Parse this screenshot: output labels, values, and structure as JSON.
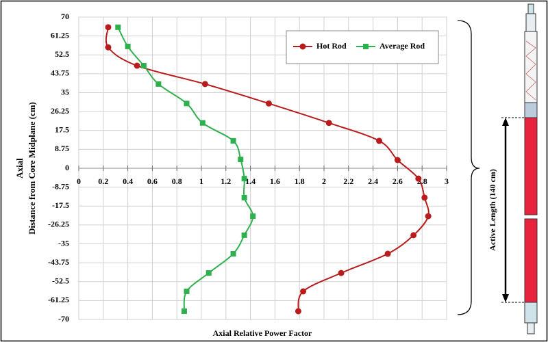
{
  "chart_data": {
    "type": "line",
    "xlabel": "Axial Relative Power Factor",
    "ylabel": [
      "Axial",
      "Distance from Core Midplane  (cm)"
    ],
    "annotation": "Active Length (140 cm)",
    "xlim": [
      0,
      3
    ],
    "xticks": [
      0,
      0.2,
      0.4,
      0.6,
      0.8,
      1,
      1.2,
      1.4,
      1.6,
      1.8,
      2,
      2.2,
      2.4,
      2.6,
      2.8,
      3
    ],
    "ylim": [
      -70,
      70
    ],
    "yticks": [
      70,
      61.25,
      52.5,
      43.75,
      35,
      26.25,
      17.5,
      8.75,
      0,
      -8.75,
      -17.5,
      -26.25,
      -35,
      -43.75,
      -52.5,
      -61.25,
      -70
    ],
    "grid": true,
    "legend": "top-right",
    "series": [
      {
        "name": "Hot Rod",
        "color": "#b81c1c",
        "marker": "circle",
        "x": [
          0.24,
          0.24,
          0.475,
          1.03,
          1.55,
          2.04,
          2.45,
          2.6,
          2.77,
          2.82,
          2.85,
          2.73,
          2.52,
          2.14,
          1.83,
          1.79
        ],
        "values": [
          65.3,
          56,
          47.5,
          39,
          30,
          21,
          12.7,
          3.8,
          -4.8,
          -13.6,
          -22.2,
          -31,
          -39.6,
          -48.5,
          -57,
          -66.2
        ]
      },
      {
        "name": "Average Rod",
        "color": "#2fb04e",
        "marker": "square",
        "x": [
          0.32,
          0.4,
          0.53,
          0.65,
          0.88,
          1.01,
          1.26,
          1.32,
          1.35,
          1.35,
          1.42,
          1.35,
          1.26,
          1.06,
          0.88,
          0.86
        ],
        "values": [
          65.3,
          56.4,
          47.5,
          39,
          30,
          21,
          12.7,
          4.1,
          -4.8,
          -13.6,
          -22.2,
          -31,
          -39.6,
          -48.5,
          -57,
          -66.2
        ]
      }
    ]
  }
}
